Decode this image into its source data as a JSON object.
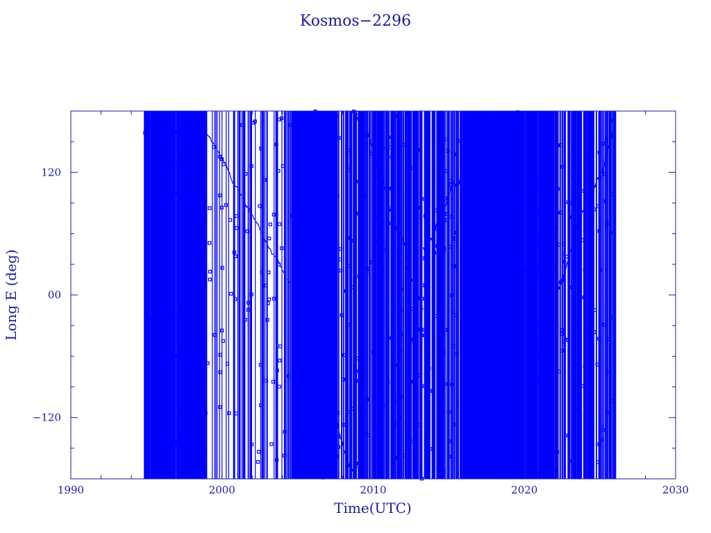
{
  "chart_data": {
    "type": "line",
    "title": "Kosmos−2296",
    "xlabel": "Time(UTC)",
    "ylabel": "Long E (deg)",
    "xlim": [
      1990,
      2030
    ],
    "ylim": [
      -180,
      180
    ],
    "xticks": [
      1990,
      2000,
      2010,
      2020,
      2030
    ],
    "xtick_labels": [
      "1990",
      "2000",
      "2010",
      "2020",
      "2030"
    ],
    "yticks": [
      -120,
      0,
      120
    ],
    "ytick_labels": [
      "−120",
      "00",
      "120"
    ],
    "grid": false,
    "data_range": [
      1994.9,
      2026.0
    ],
    "series_color": "#0000ff",
    "axis_color": "#1a1aa0",
    "segments": [
      {
        "start": 1994.9,
        "end": 1999.0,
        "rate": -55,
        "density": "dense"
      },
      {
        "start": 1999.0,
        "end": 2004.6,
        "rate": -24,
        "density": "sparse"
      },
      {
        "start": 2004.6,
        "end": 2007.4,
        "rate": -60,
        "density": "dense"
      },
      {
        "start": 2007.4,
        "end": 2013.3,
        "rate": -40,
        "density": "medium"
      },
      {
        "start": 2013.3,
        "end": 2016.0,
        "rate": 35,
        "density": "medium"
      },
      {
        "start": 2016.0,
        "end": 2022.0,
        "rate": 30,
        "density": "dense"
      },
      {
        "start": 2022.0,
        "end": 2026.0,
        "rate": 45,
        "density": "medium"
      }
    ]
  }
}
